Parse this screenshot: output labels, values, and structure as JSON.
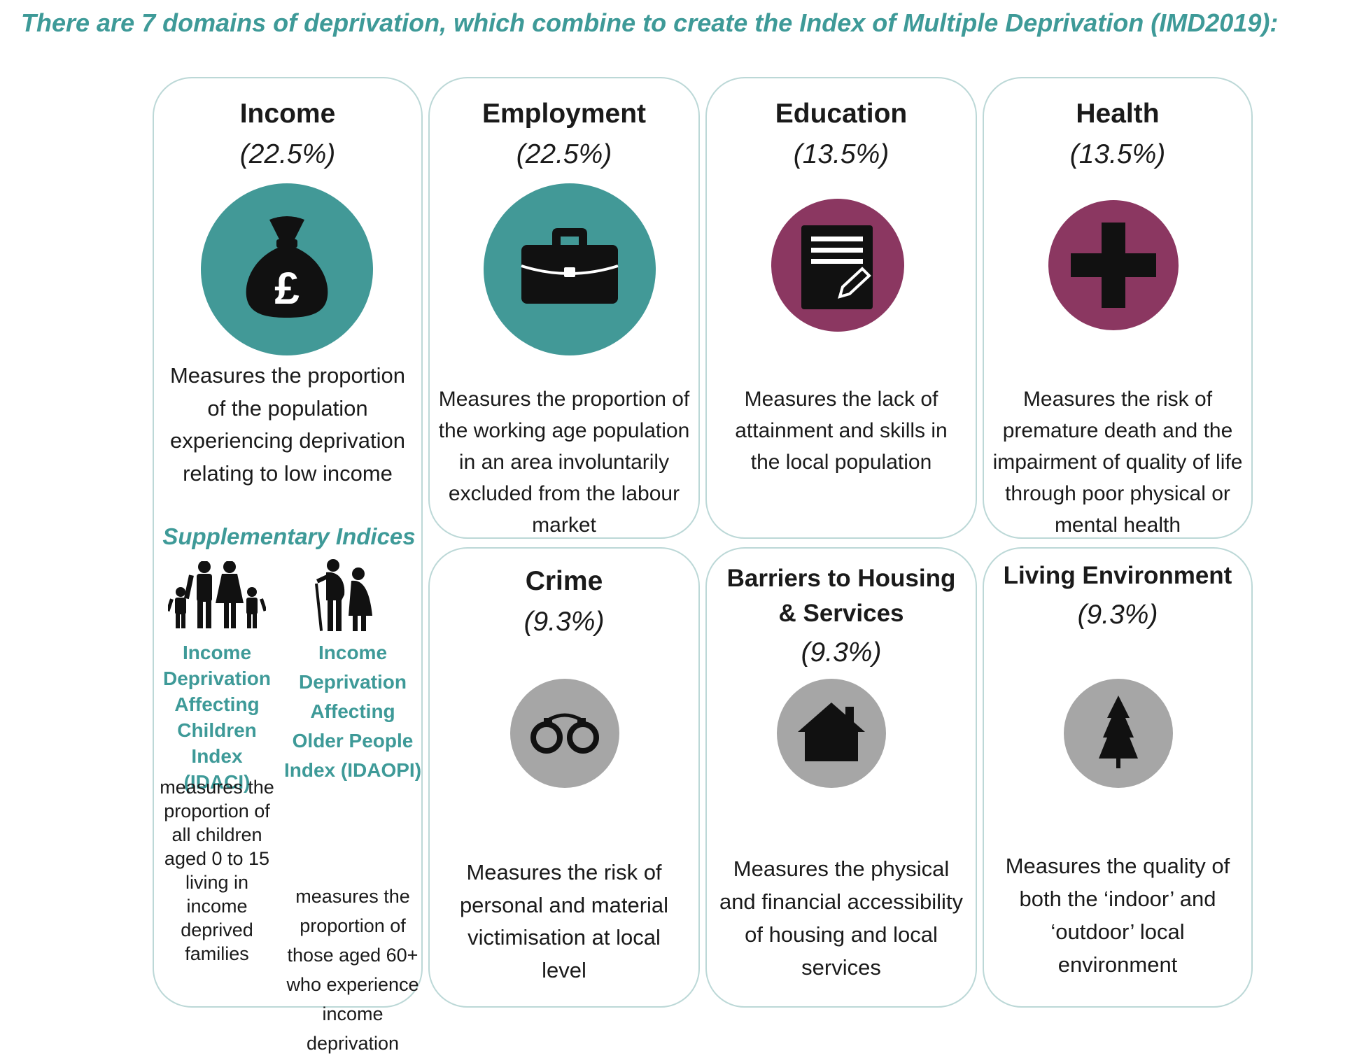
{
  "heading": "There are 7 domains of deprivation, which combine to create the Index of Multiple Deprivation (IMD2019):",
  "colors": {
    "teal": "#429997",
    "plum": "#8b3761",
    "grey": "#a6a6a6",
    "accent_text": "#3e9a98"
  },
  "domains": {
    "income": {
      "title": "Income",
      "weight": "(22.5%)",
      "icon": "money-bag-pound-icon",
      "description": "Measures the proportion of the population experiencing deprivation relating to low income"
    },
    "employment": {
      "title": "Employment",
      "weight": "(22.5%)",
      "icon": "briefcase-icon",
      "description": "Measures the proportion of the working age population in an area involuntarily excluded from the labour market"
    },
    "education": {
      "title": "Education",
      "weight": "(13.5%)",
      "icon": "notepad-pencil-icon",
      "description": "Measures the lack of attainment and skills in the local population"
    },
    "health": {
      "title": "Health",
      "weight": "(13.5%)",
      "icon": "medical-cross-icon",
      "description": "Measures the risk of premature death and the impairment of quality of life through poor physical or mental health"
    },
    "crime": {
      "title": "Crime",
      "weight": "(9.3%)",
      "icon": "handcuffs-icon",
      "description": "Measures the risk of personal and material victimisation at local level"
    },
    "barriers": {
      "title_line1": "Barriers to Housing",
      "title_line2": "& Services",
      "weight": "(9.3%)",
      "icon": "house-icon",
      "description": "Measures the physical and financial accessibility of housing and local services"
    },
    "living": {
      "title": "Living Environment",
      "weight": "(9.3%)",
      "icon": "tree-icon",
      "description": "Measures the quality of both the ‘indoor’ and ‘outdoor’ local environment"
    }
  },
  "supplementary": {
    "title": "Supplementary Indices",
    "idaci": {
      "icon": "family-icon",
      "name": "Income Deprivation Affecting Children Index (IDACI)",
      "description": "measures the proportion of all children aged 0 to 15 living in income deprived families"
    },
    "idaopi": {
      "icon": "older-people-icon",
      "name": "Income Deprivation Affecting Older People Index (IDAOPI)",
      "description": "measures the proportion of those aged 60+ who experience income deprivation"
    }
  }
}
